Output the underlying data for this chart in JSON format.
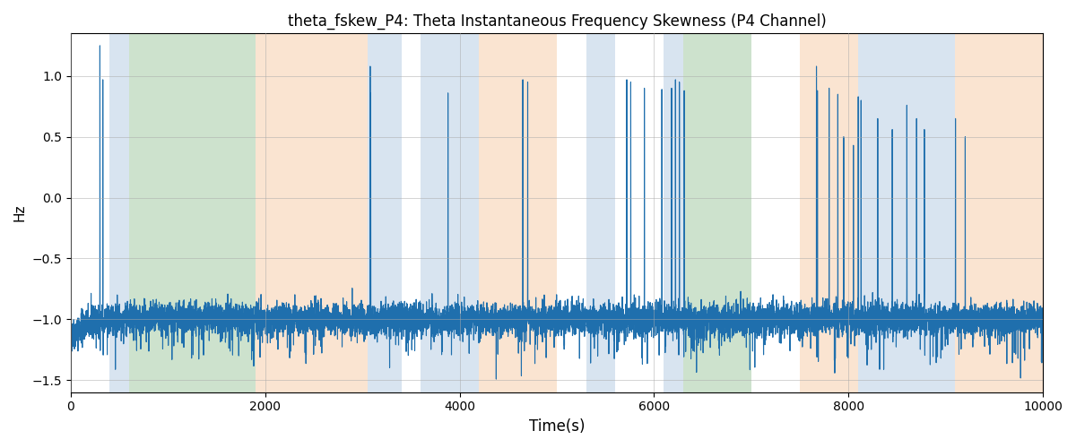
{
  "title": "theta_fskew_P4: Theta Instantaneous Frequency Skewness (P4 Channel)",
  "xlabel": "Time(s)",
  "ylabel": "Hz",
  "xlim": [
    0,
    10000
  ],
  "ylim": [
    -1.6,
    1.35
  ],
  "line_color": "#1f6fad",
  "line_width": 0.8,
  "background_color": "#ffffff",
  "grid_color": "#aaaaaa",
  "figsize": [
    12,
    5
  ],
  "dpi": 100,
  "seed": 42,
  "colored_bands": [
    {
      "xmin": 400,
      "xmax": 600,
      "color": "#aac4de",
      "alpha": 0.45
    },
    {
      "xmin": 600,
      "xmax": 1900,
      "color": "#90c090",
      "alpha": 0.45
    },
    {
      "xmin": 1900,
      "xmax": 3050,
      "color": "#f5c59a",
      "alpha": 0.45
    },
    {
      "xmin": 3050,
      "xmax": 3400,
      "color": "#aac4de",
      "alpha": 0.45
    },
    {
      "xmin": 3400,
      "xmax": 3600,
      "color": "#ffffff",
      "alpha": 0.0
    },
    {
      "xmin": 3600,
      "xmax": 4200,
      "color": "#aac4de",
      "alpha": 0.45
    },
    {
      "xmin": 4200,
      "xmax": 5000,
      "color": "#f5c59a",
      "alpha": 0.45
    },
    {
      "xmin": 5000,
      "xmax": 5300,
      "color": "#ffffff",
      "alpha": 0.0
    },
    {
      "xmin": 5300,
      "xmax": 5600,
      "color": "#aac4de",
      "alpha": 0.45
    },
    {
      "xmin": 5600,
      "xmax": 6100,
      "color": "#ffffff",
      "alpha": 0.0
    },
    {
      "xmin": 6100,
      "xmax": 6300,
      "color": "#aac4de",
      "alpha": 0.45
    },
    {
      "xmin": 6300,
      "xmax": 7000,
      "color": "#90c090",
      "alpha": 0.45
    },
    {
      "xmin": 7000,
      "xmax": 7500,
      "color": "#ffffff",
      "alpha": 0.0
    },
    {
      "xmin": 7500,
      "xmax": 8100,
      "color": "#f5c59a",
      "alpha": 0.45
    },
    {
      "xmin": 8100,
      "xmax": 9100,
      "color": "#aac4de",
      "alpha": 0.45
    },
    {
      "xmin": 9100,
      "xmax": 10000,
      "color": "#f5c59a",
      "alpha": 0.45
    }
  ],
  "noise_std": 0.065,
  "base_level": -1.0,
  "spikes": [
    {
      "t": 300,
      "v": 1.25
    },
    {
      "t": 330,
      "v": 0.97
    },
    {
      "t": 3080,
      "v": 1.08
    },
    {
      "t": 3085,
      "v": 0.86
    },
    {
      "t": 3880,
      "v": 0.86
    },
    {
      "t": 4650,
      "v": 0.97
    },
    {
      "t": 4700,
      "v": 0.95
    },
    {
      "t": 5720,
      "v": 0.97
    },
    {
      "t": 5760,
      "v": 0.95
    },
    {
      "t": 5900,
      "v": 0.9
    },
    {
      "t": 6080,
      "v": 0.89
    },
    {
      "t": 6180,
      "v": 0.9
    },
    {
      "t": 6220,
      "v": 0.97
    },
    {
      "t": 6260,
      "v": 0.95
    },
    {
      "t": 6310,
      "v": 0.88
    },
    {
      "t": 7670,
      "v": 1.08
    },
    {
      "t": 7680,
      "v": 0.88
    },
    {
      "t": 7800,
      "v": 0.9
    },
    {
      "t": 7890,
      "v": 0.85
    },
    {
      "t": 7950,
      "v": 0.5
    },
    {
      "t": 8050,
      "v": 0.43
    },
    {
      "t": 8100,
      "v": 0.83
    },
    {
      "t": 8130,
      "v": 0.8
    },
    {
      "t": 8300,
      "v": 0.65
    },
    {
      "t": 8450,
      "v": 0.56
    },
    {
      "t": 8600,
      "v": 0.76
    },
    {
      "t": 8700,
      "v": 0.65
    },
    {
      "t": 8780,
      "v": 0.56
    },
    {
      "t": 9100,
      "v": 0.65
    },
    {
      "t": 9200,
      "v": 0.5
    }
  ]
}
